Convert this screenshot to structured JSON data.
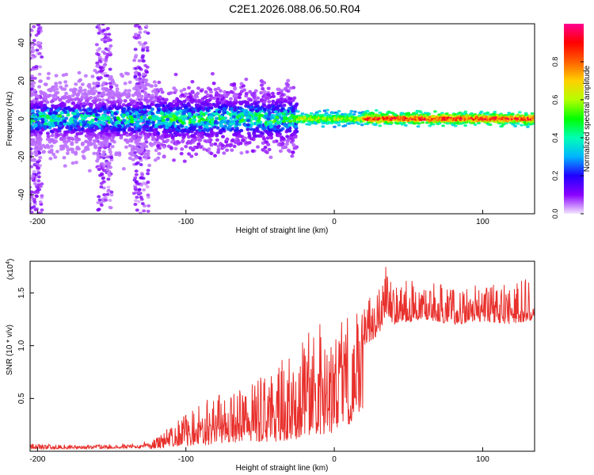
{
  "title": "C2E1.2026.088.06.50.R04",
  "chart_data": [
    {
      "type": "heatmap",
      "xlabel": "Height of straight line (km)",
      "ylabel": "Frequency (Hz)",
      "xlim": [
        -205,
        135
      ],
      "ylim": [
        -50,
        50
      ],
      "xticks": [
        -200,
        -100,
        0,
        100
      ],
      "yticks": [
        -40,
        -20,
        0,
        20,
        40
      ],
      "colorbar": {
        "label": "Normalized spectral amplitude",
        "range": [
          0,
          1
        ],
        "ticks": [
          0.0,
          0.2,
          0.4,
          0.6,
          0.8
        ],
        "colors": [
          "#f3e6ff",
          "#8a00ff",
          "#2000ff",
          "#00b4ff",
          "#00ffb4",
          "#00ff00",
          "#b4ff00",
          "#ffd000",
          "#ff6000",
          "#ff0000",
          "#ff0090"
        ]
      },
      "description_of_data": {
        "ridge_center_hz": 0,
        "broad_noise_region_km": [
          -205,
          -25
        ],
        "narrow_line_region_km": [
          -25,
          135
        ],
        "high_amplitude_columns_km": [
          -202,
          -155,
          -130
        ]
      }
    },
    {
      "type": "line",
      "xlabel": "Height of straight line (km)",
      "ylabel": "SNR (10 * v/v)",
      "y_multiplier_label": "(x10",
      "y_multiplier_exp": "4",
      "y_multiplier_close": ")",
      "xlim": [
        -205,
        135
      ],
      "ylim": [
        0,
        18000
      ],
      "xticks": [
        -200,
        -100,
        0,
        100
      ],
      "yticks": [
        5000,
        10000,
        15000
      ],
      "ytick_labels": [
        "0.5",
        "1.0",
        "1.5"
      ],
      "color": "#e8302c",
      "series_envelope": {
        "x": [
          -205,
          -160,
          -130,
          -120,
          -100,
          -80,
          -60,
          -40,
          -20,
          -10,
          0,
          10,
          20,
          30,
          35,
          40,
          60,
          80,
          100,
          120,
          135
        ],
        "baseline": [
          200,
          250,
          300,
          700,
          1500,
          2000,
          2500,
          3000,
          3500,
          5000,
          5500,
          9000,
          10000,
          11000,
          13000,
          12000,
          12500,
          12000,
          12300,
          12000,
          12500
        ],
        "peak": [
          700,
          600,
          800,
          1500,
          3500,
          5500,
          6000,
          8000,
          11000,
          12500,
          11000,
          13500,
          14000,
          15500,
          18000,
          16000,
          16500,
          15500,
          15800,
          16000,
          16500
        ]
      }
    }
  ]
}
